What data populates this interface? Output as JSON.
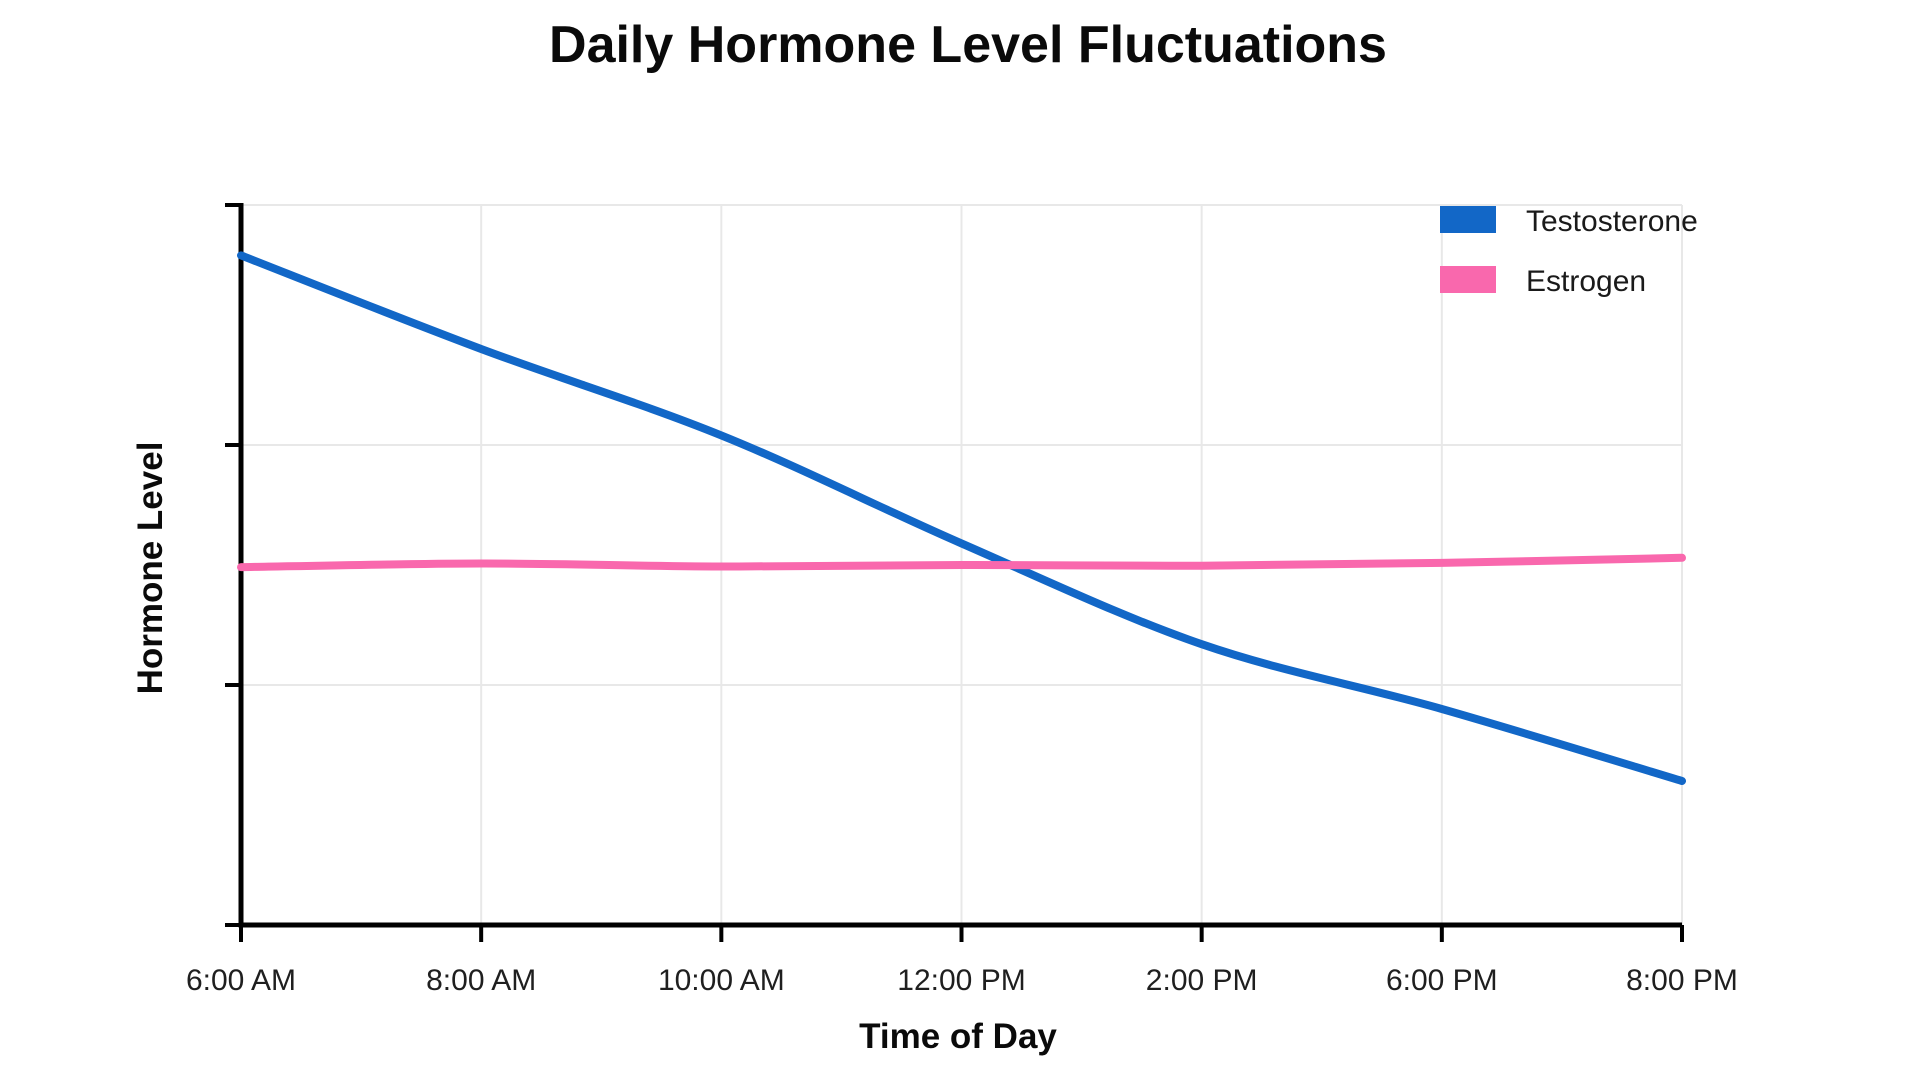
{
  "figure": {
    "background": "#ffffff"
  },
  "chart_data": {
    "type": "line",
    "title": "Daily Hormone Level Fluctuations",
    "xlabel": "Time of Day",
    "ylabel": "Hormone Level",
    "categories": [
      "6:00 AM",
      "8:00 AM",
      "10:00 AM",
      "12:00 PM",
      "2:00 PM",
      "6:00 PM",
      "8:00 PM"
    ],
    "series": [
      {
        "name": "Testosterone",
        "color": "#1267C7",
        "values": [
          93,
          80,
          68,
          53,
          39,
          30,
          20
        ]
      },
      {
        "name": "Estrogen",
        "color": "#F968AD",
        "values": [
          49.7,
          50.2,
          49.8,
          50.0,
          49.9,
          50.3,
          51.0
        ]
      }
    ],
    "ylim": [
      0,
      100
    ],
    "y_axis_tick_count": 4,
    "y_tick_labels_shown": false,
    "grid": true,
    "legend_position": "top-right",
    "line_style": "smooth"
  },
  "colors": {
    "axis": "#000000",
    "gridline": "#e8e8e8",
    "title_text": "#0a0a0a",
    "tick_text": "#1f1f1f"
  }
}
